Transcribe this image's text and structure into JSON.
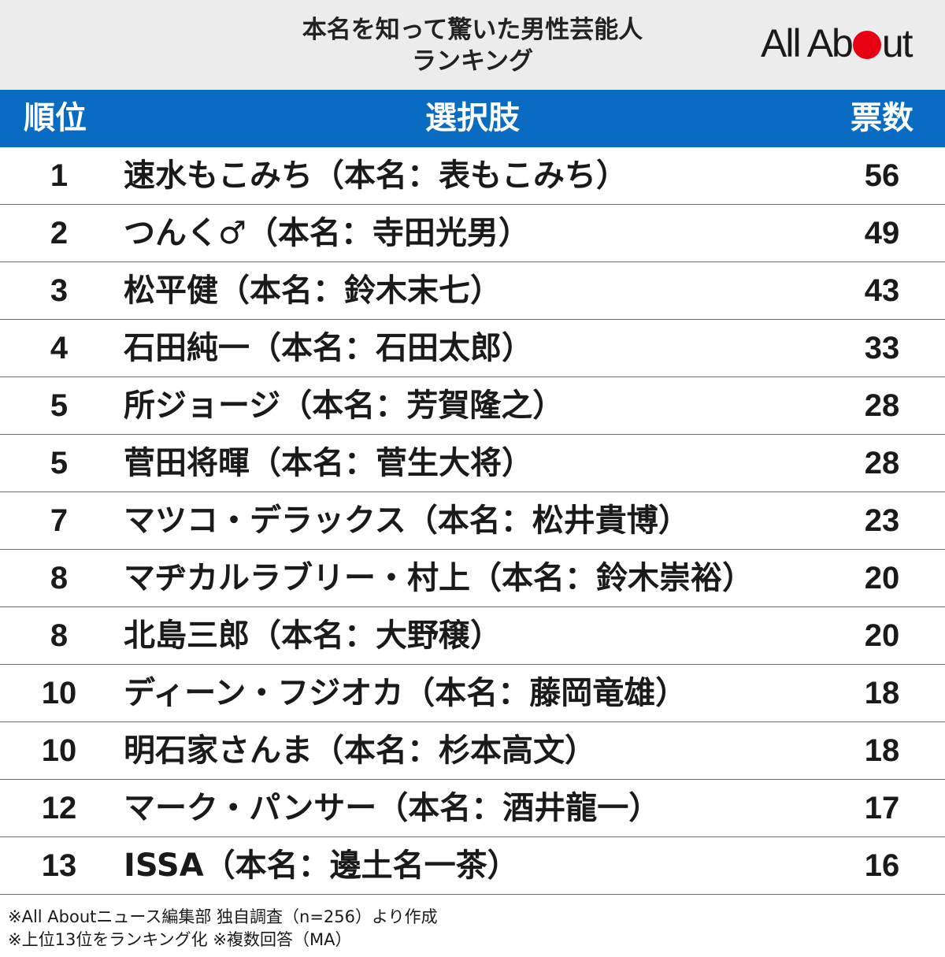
{
  "chart_data": {
    "type": "table",
    "title_line1": "本名を知って驚いた男性芸能人",
    "title_line2": "ランキング",
    "logo": "All About",
    "columns": [
      "順位",
      "選択肢",
      "票数"
    ],
    "rows": [
      {
        "rank": "1",
        "choice": "速水もこみち（本名：表もこみち）",
        "votes": "56"
      },
      {
        "rank": "2",
        "choice": "つんく♂（本名：寺田光男）",
        "votes": "49"
      },
      {
        "rank": "3",
        "choice": "松平健（本名：鈴木末七）",
        "votes": "43"
      },
      {
        "rank": "4",
        "choice": "石田純一（本名：石田太郎）",
        "votes": "33"
      },
      {
        "rank": "5",
        "choice": "所ジョージ（本名：芳賀隆之）",
        "votes": "28"
      },
      {
        "rank": "5",
        "choice": "菅田将暉（本名：菅生大将）",
        "votes": "28"
      },
      {
        "rank": "7",
        "choice": "マツコ・デラックス（本名：松井貴博）",
        "votes": "23"
      },
      {
        "rank": "8",
        "choice": "マヂカルラブリー・村上（本名：鈴木崇裕）",
        "votes": "20"
      },
      {
        "rank": "8",
        "choice": "北島三郎（本名：大野穣）",
        "votes": "20"
      },
      {
        "rank": "10",
        "choice": "ディーン・フジオカ（本名：藤岡竜雄）",
        "votes": "18"
      },
      {
        "rank": "10",
        "choice": "明石家さんま（本名：杉本高文）",
        "votes": "18"
      },
      {
        "rank": "12",
        "choice": "マーク・パンサー（本名：酒井龍一）",
        "votes": "17"
      },
      {
        "rank": "13",
        "choice": "ISSA（本名：邊土名一茶）",
        "votes": "16"
      }
    ],
    "footnotes": [
      "※All Aboutニュース編集部 独自調査（n=256）より作成",
      "※上位13位をランキング化 ※複数回答（MA）"
    ]
  },
  "colors": {
    "header_band": "#ececec",
    "column_header": "#0a6bc2",
    "logo_accent": "#e60012"
  }
}
